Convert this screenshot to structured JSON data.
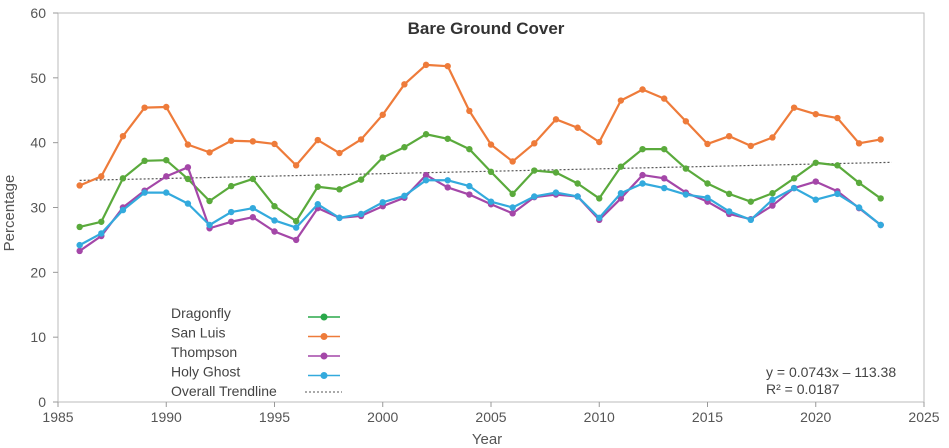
{
  "chart_data": {
    "type": "line",
    "title": "Bare Ground Cover",
    "xlabel": "Year",
    "ylabel": "Percentage",
    "xlim": [
      1985,
      2025
    ],
    "ylim": [
      0,
      60
    ],
    "xticks": [
      1985,
      1990,
      1995,
      2000,
      2005,
      2010,
      2015,
      2020,
      2025
    ],
    "yticks": [
      0,
      10,
      20,
      30,
      40,
      50,
      60
    ],
    "grid": "none",
    "legend_position": "bottom-left",
    "x": [
      1986,
      1987,
      1988,
      1989,
      1990,
      1991,
      1992,
      1993,
      1994,
      1995,
      1996,
      1997,
      1998,
      1999,
      2000,
      2001,
      2002,
      2003,
      2004,
      2005,
      2006,
      2007,
      2008,
      2009,
      2010,
      2011,
      2012,
      2013,
      2014,
      2015,
      2016,
      2017,
      2018,
      2019,
      2020,
      2021,
      2022,
      2023
    ],
    "series": [
      {
        "name": "Dragonfly",
        "color": "#5aaa3c",
        "legend_color": "#2aa84a",
        "values": [
          27.0,
          27.8,
          34.5,
          37.2,
          37.3,
          34.4,
          31.0,
          33.3,
          34.4,
          30.2,
          27.9,
          33.2,
          32.8,
          34.3,
          37.7,
          39.3,
          41.3,
          40.6,
          39.0,
          35.5,
          32.1,
          35.7,
          35.4,
          33.7,
          31.4,
          36.3,
          39.0,
          39.0,
          36.0,
          33.7,
          32.1,
          30.9,
          32.2,
          34.5,
          36.9,
          36.5,
          33.8,
          31.4
        ]
      },
      {
        "name": "San Luis",
        "color": "#ee7b3a",
        "legend_color": "#ee7b3a",
        "values": [
          33.4,
          34.8,
          41.0,
          45.4,
          45.5,
          39.7,
          38.5,
          40.3,
          40.2,
          39.8,
          36.5,
          40.4,
          38.4,
          40.5,
          44.3,
          49.0,
          52.0,
          51.8,
          44.9,
          39.7,
          37.1,
          39.9,
          43.6,
          42.3,
          40.1,
          46.5,
          48.2,
          46.8,
          43.3,
          39.8,
          41.0,
          39.5,
          40.8,
          45.4,
          44.4,
          43.8,
          39.9,
          40.5
        ]
      },
      {
        "name": "Thompson",
        "color": "#a447a8",
        "legend_color": "#a447a8",
        "values": [
          23.3,
          25.6,
          30.0,
          32.6,
          34.8,
          36.2,
          26.8,
          27.8,
          28.5,
          26.3,
          25.0,
          29.9,
          28.4,
          28.7,
          30.2,
          31.5,
          35.0,
          33.1,
          32.0,
          30.5,
          29.1,
          31.6,
          32.0,
          31.7,
          28.1,
          31.4,
          35.0,
          34.5,
          32.3,
          30.9,
          29.0,
          28.2,
          30.3,
          33.0,
          34.0,
          32.5,
          29.9,
          27.3
        ]
      },
      {
        "name": "Holy Ghost",
        "color": "#33aadd",
        "legend_color": "#33aadd",
        "values": [
          24.2,
          26.0,
          29.6,
          32.3,
          32.3,
          30.6,
          27.3,
          29.3,
          29.9,
          28.0,
          26.9,
          30.5,
          28.4,
          29.0,
          30.8,
          31.8,
          34.2,
          34.2,
          33.3,
          30.9,
          30.0,
          31.7,
          32.3,
          31.7,
          28.4,
          32.2,
          33.7,
          33.0,
          32.0,
          31.5,
          29.4,
          28.1,
          31.2,
          33.0,
          31.2,
          32.1,
          30.0,
          27.3
        ]
      }
    ],
    "trendline": {
      "name": "Overall Trendline",
      "color": "#555555",
      "slope": 0.0743,
      "intercept": -113.38,
      "x_range": [
        1986,
        2023.5
      ]
    },
    "annotations": {
      "equation": "y = 0.0743x – 113.38",
      "r_squared": "R² = 0.0187"
    }
  }
}
